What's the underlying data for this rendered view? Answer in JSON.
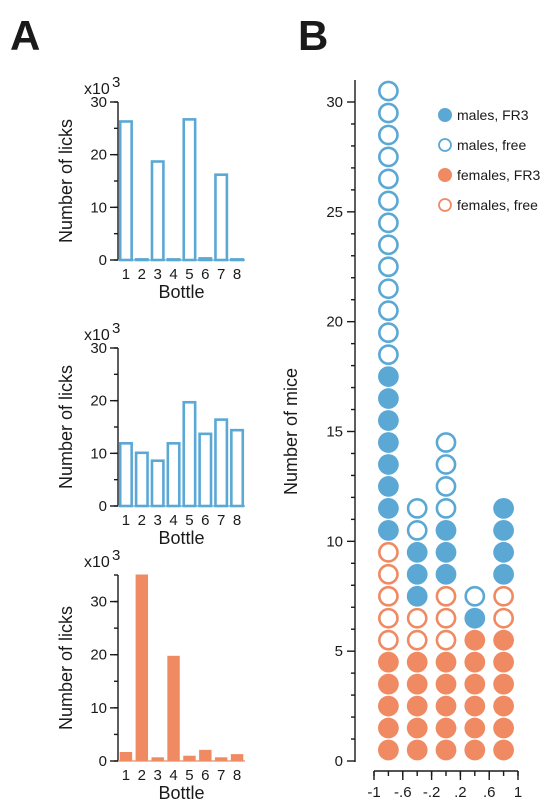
{
  "panel_labels": {
    "a": "A",
    "b": "B"
  },
  "colors": {
    "male": "#5ba8d5",
    "female": "#ef8a62",
    "axis": "#1a1a1a"
  },
  "chart_data": [
    {
      "id": "a1",
      "type": "bar",
      "style": "open",
      "color": "#5ba8d5",
      "multiplier_label": "x10",
      "multiplier_exp": "3",
      "xlabel": "Bottle",
      "ylabel": "Number of licks",
      "ylim": [
        0,
        30
      ],
      "yticks": [
        0,
        10,
        20,
        30
      ],
      "categories": [
        "1",
        "2",
        "3",
        "4",
        "5",
        "6",
        "7",
        "8"
      ],
      "values": [
        26.3,
        0.1,
        18.7,
        0.1,
        26.7,
        0.3,
        16.2,
        0.1
      ]
    },
    {
      "id": "a2",
      "type": "bar",
      "style": "open",
      "color": "#5ba8d5",
      "multiplier_label": "x10",
      "multiplier_exp": "3",
      "xlabel": "Bottle",
      "ylabel": "Number of licks",
      "ylim": [
        0,
        30
      ],
      "yticks": [
        0,
        10,
        20,
        30
      ],
      "categories": [
        "1",
        "2",
        "3",
        "4",
        "5",
        "6",
        "7",
        "8"
      ],
      "values": [
        11.9,
        10.1,
        8.6,
        11.9,
        19.7,
        13.7,
        16.4,
        14.4
      ]
    },
    {
      "id": "a3",
      "type": "bar",
      "style": "filled",
      "color": "#ef8a62",
      "multiplier_label": "x10",
      "multiplier_exp": "3",
      "xlabel": "Bottle",
      "ylabel": "Number of licks",
      "ylim": [
        0,
        35
      ],
      "yticks": [
        0,
        10,
        20,
        30
      ],
      "categories": [
        "1",
        "2",
        "3",
        "4",
        "5",
        "6",
        "7",
        "8"
      ],
      "values": [
        1.6,
        35.0,
        0.6,
        19.7,
        0.9,
        2.0,
        0.6,
        1.2
      ]
    },
    {
      "id": "b",
      "type": "scatter",
      "subtype": "stacked-dot-histogram",
      "ylabel": "Number of mice",
      "xticks": [
        "-1",
        "-.6",
        "-.2",
        ".2",
        ".6",
        "1"
      ],
      "xtick_values": [
        -1,
        -0.6,
        -0.2,
        0.2,
        0.6,
        1
      ],
      "xlim": [
        -1,
        1
      ],
      "yticks": [
        0,
        5,
        10,
        15,
        20,
        25,
        30
      ],
      "ylim": [
        0,
        31
      ],
      "bins": [
        -0.8,
        -0.4,
        0.0,
        0.4,
        0.8
      ],
      "series": [
        {
          "name": "females, FR3",
          "key": "female_fr3",
          "color": "#ef8a62",
          "filled": true,
          "counts": [
            5,
            5,
            5,
            6,
            6
          ]
        },
        {
          "name": "females, free",
          "key": "female_free",
          "color": "#ef8a62",
          "filled": false,
          "counts": [
            5,
            2,
            3,
            0,
            2
          ]
        },
        {
          "name": "males, FR3",
          "key": "male_fr3",
          "color": "#5ba8d5",
          "filled": true,
          "counts": [
            8,
            3,
            3,
            1,
            4
          ]
        },
        {
          "name": "males, free",
          "key": "male_free",
          "color": "#5ba8d5",
          "filled": false,
          "counts": [
            13,
            2,
            4,
            1,
            0
          ]
        }
      ],
      "legend_order": [
        "male_fr3",
        "male_free",
        "female_fr3",
        "female_free"
      ],
      "legend_position": "top-right"
    }
  ]
}
